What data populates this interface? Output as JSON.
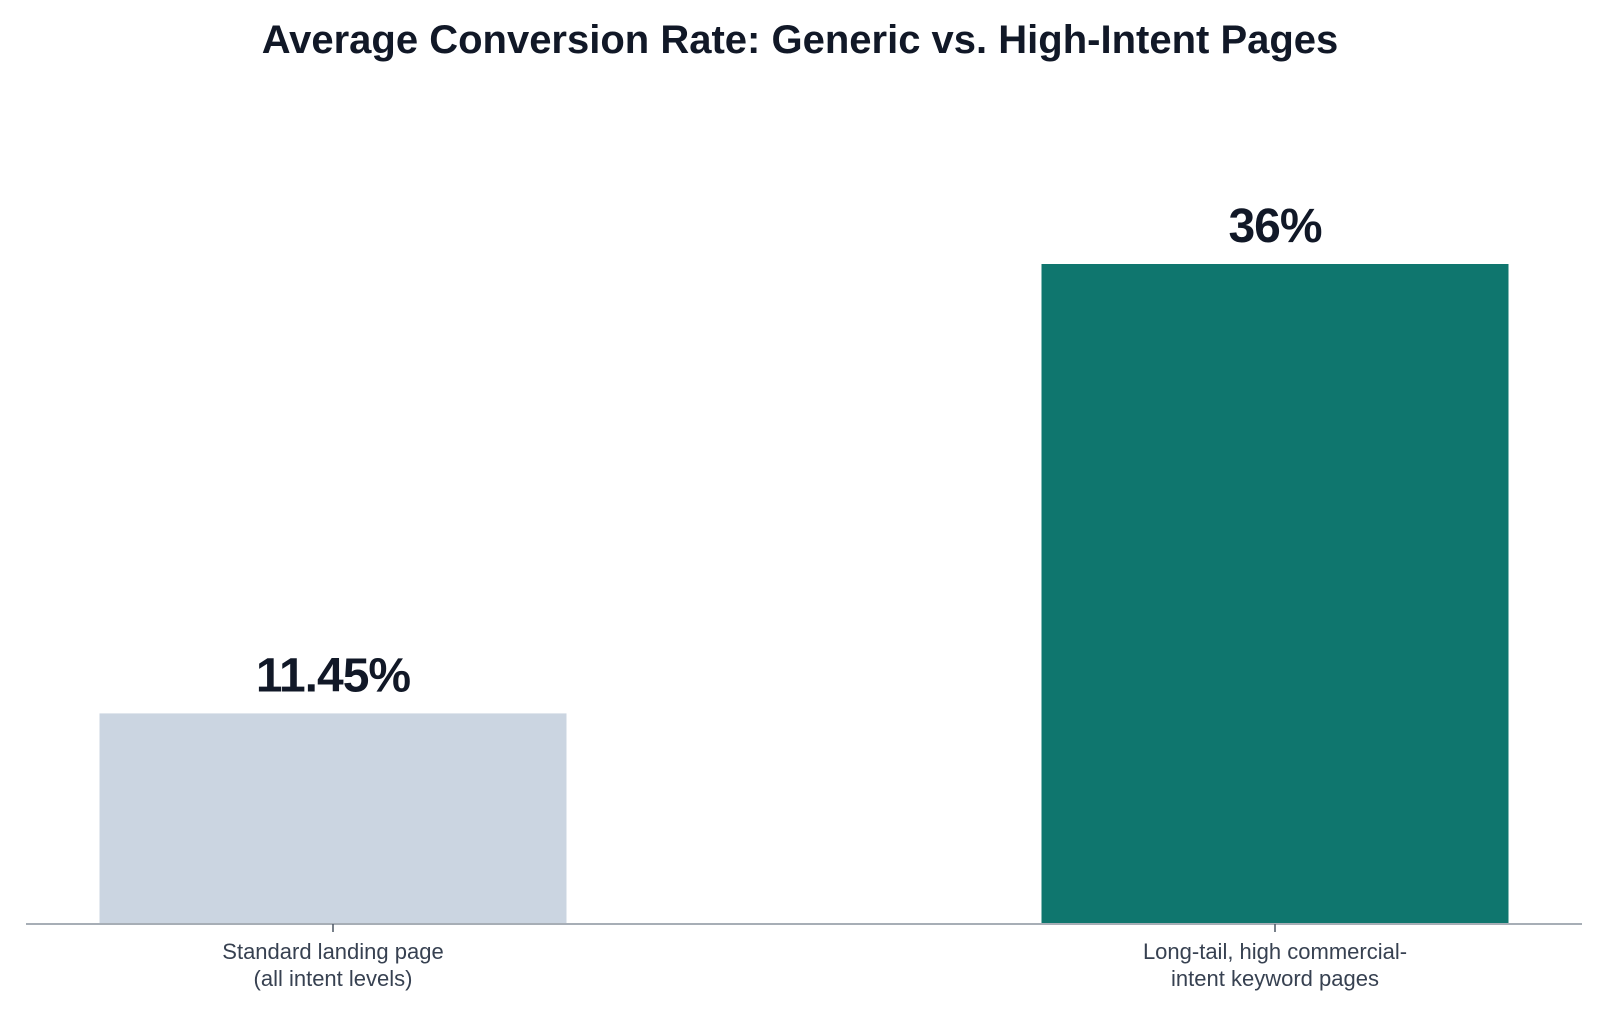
{
  "chart_data": {
    "type": "bar",
    "title": "Average Conversion Rate: Generic vs. High-Intent Pages",
    "xlabel": "",
    "ylabel": "",
    "categories": [
      [
        "Standard landing page",
        "(all intent levels)"
      ],
      [
        "Long-tail, high commercial-",
        "intent keyword pages"
      ]
    ],
    "values": [
      11.45,
      36
    ],
    "value_labels": [
      "11.45%",
      "36%"
    ],
    "colors": [
      "#cbd5e1",
      "#0f766e"
    ],
    "ylim": [
      0,
      36
    ],
    "grid": false,
    "legend": "none"
  }
}
